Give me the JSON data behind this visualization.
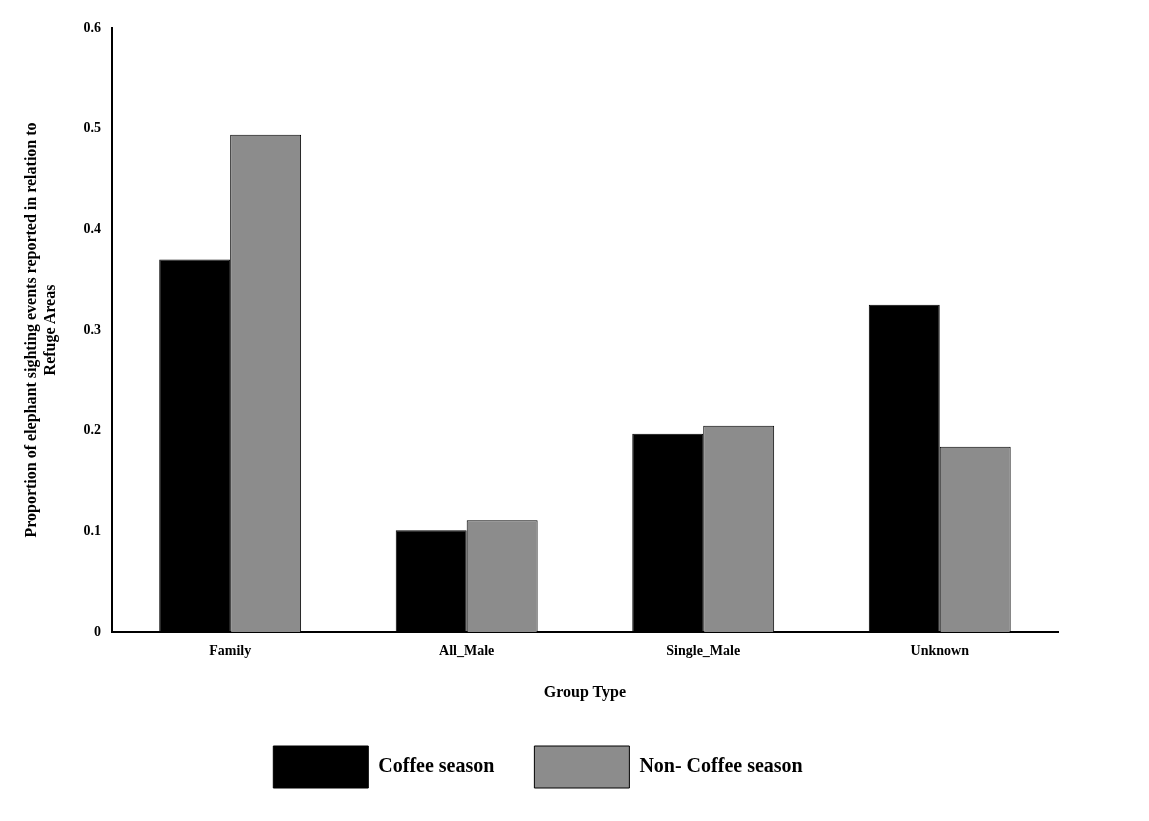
{
  "chart_data": {
    "type": "bar",
    "xlabel": "Group Type",
    "ylabel": "Proportion of elephant sighting events reported in relation to Refuge Areas",
    "categories": [
      "Family",
      "All_Male",
      "Single_Male",
      "Unknown"
    ],
    "series": [
      {
        "name": "Coffee season",
        "color": "#000000",
        "values": [
          0.37,
          0.101,
          0.197,
          0.325
        ]
      },
      {
        "name": "Non- Coffee season",
        "color": "#8c8c8c",
        "values": [
          0.494,
          0.111,
          0.205,
          0.184
        ]
      }
    ],
    "ylim": [
      0,
      0.6
    ],
    "yticks": [
      0,
      0.1,
      0.2,
      0.3,
      0.4,
      0.5,
      0.6
    ],
    "grid": false,
    "legend": "bottom"
  }
}
